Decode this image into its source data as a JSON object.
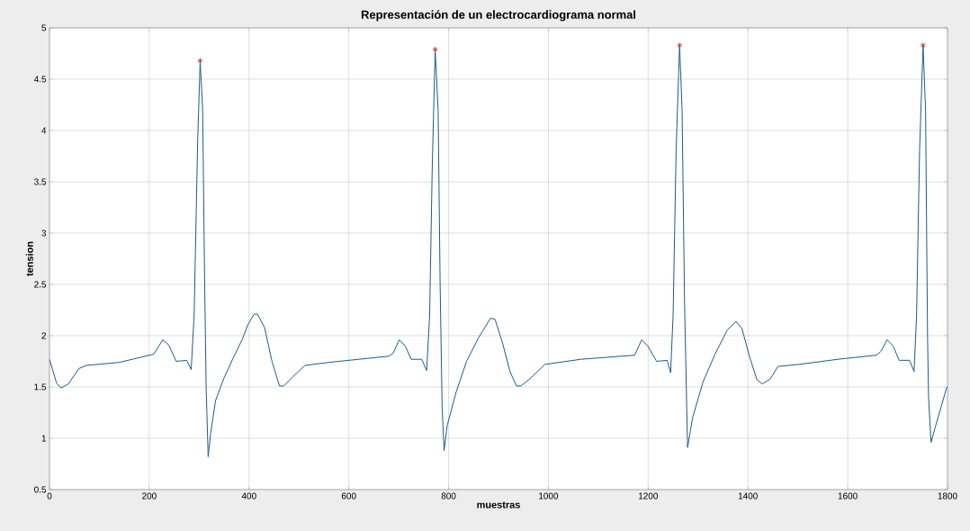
{
  "chart_data": {
    "type": "line",
    "title": "Representación de un electrocardiograma normal",
    "xlabel": "muestras",
    "ylabel": "tension",
    "xlim": [
      0,
      1800
    ],
    "ylim": [
      0.5,
      5
    ],
    "xticks": [
      0,
      200,
      400,
      600,
      800,
      1000,
      1200,
      1400,
      1600,
      1800
    ],
    "yticks": [
      0.5,
      1,
      1.5,
      2,
      2.5,
      3,
      3.5,
      4,
      4.5,
      5
    ],
    "grid": true,
    "series": [
      {
        "color": "#1b5b8c",
        "x": [
          0,
          14,
          23,
          38,
          59,
          74,
          140,
          209,
          227,
          239,
          254,
          275,
          284,
          290,
          297,
          302,
          307,
          311,
          314,
          318,
          323,
          333,
          350,
          368,
          386,
          398,
          410,
          417,
          431,
          446,
          461,
          470,
          488,
          512,
          560,
          620,
          680,
          689,
          701,
          713,
          725,
          746,
          756,
          762,
          767,
          773,
          779,
          783,
          787,
          791,
          797,
          815,
          836,
          860,
          884,
          893,
          908,
          923,
          936,
          945,
          963,
          993,
          1065,
          1173,
          1187,
          1199,
          1217,
          1238,
          1245,
          1250,
          1256,
          1263,
          1268,
          1273,
          1279,
          1289,
          1310,
          1334,
          1358,
          1376,
          1388,
          1403,
          1418,
          1429,
          1445,
          1460,
          1502,
          1580,
          1658,
          1667,
          1679,
          1691,
          1703,
          1724,
          1733,
          1738,
          1744,
          1751,
          1756,
          1760,
          1762,
          1767,
          1775,
          1798,
          1800
        ],
        "values": [
          1.77,
          1.54,
          1.49,
          1.53,
          1.68,
          1.71,
          1.74,
          1.82,
          1.96,
          1.91,
          1.75,
          1.76,
          1.67,
          2.21,
          3.9,
          4.68,
          4.2,
          2.5,
          1.5,
          0.82,
          1.05,
          1.37,
          1.59,
          1.78,
          1.96,
          2.11,
          2.21,
          2.21,
          2.08,
          1.75,
          1.51,
          1.51,
          1.6,
          1.71,
          1.74,
          1.77,
          1.8,
          1.83,
          1.96,
          1.9,
          1.77,
          1.77,
          1.66,
          2.2,
          3.6,
          4.79,
          4.2,
          2.5,
          1.3,
          0.88,
          1.12,
          1.45,
          1.75,
          1.98,
          2.17,
          2.16,
          1.93,
          1.65,
          1.51,
          1.51,
          1.58,
          1.72,
          1.77,
          1.81,
          1.96,
          1.9,
          1.75,
          1.76,
          1.64,
          2.2,
          3.8,
          4.83,
          4.2,
          2.3,
          0.91,
          1.2,
          1.55,
          1.82,
          2.05,
          2.14,
          2.07,
          1.8,
          1.57,
          1.53,
          1.58,
          1.7,
          1.72,
          1.77,
          1.81,
          1.85,
          1.96,
          1.9,
          1.76,
          1.76,
          1.65,
          2.2,
          3.8,
          4.83,
          4.2,
          2.0,
          1.4,
          0.96,
          1.1,
          1.49,
          1.5
        ]
      },
      {
        "type": "scatter",
        "color": "#b5302a",
        "marker": "cross",
        "x": [
          302,
          773,
          1263,
          1751
        ],
        "values": [
          4.68,
          4.79,
          4.83,
          4.83
        ]
      }
    ]
  }
}
